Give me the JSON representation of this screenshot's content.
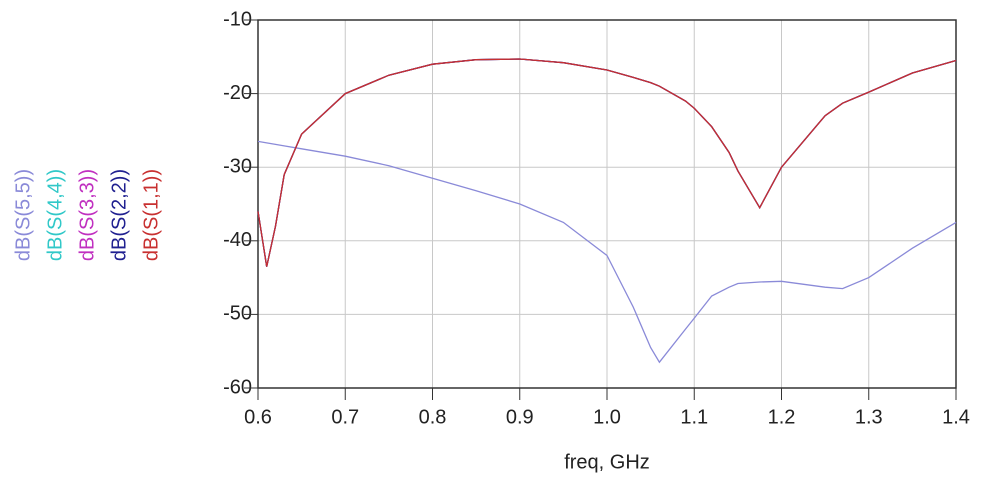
{
  "chart_data": {
    "type": "line",
    "x_label": "freq, GHz",
    "x": [
      0.6,
      0.61,
      0.62,
      0.63,
      0.65,
      0.7,
      0.75,
      0.8,
      0.85,
      0.9,
      0.95,
      1.0,
      1.03,
      1.05,
      1.06,
      1.09,
      1.1,
      1.12,
      1.14,
      1.15,
      1.175,
      1.2,
      1.25,
      1.27,
      1.3,
      1.35,
      1.4
    ],
    "series": [
      {
        "name": "dB(S(5,5))",
        "color": "#8a8ad8",
        "values": [
          -26.5,
          -26.7,
          -26.9,
          -27.1,
          -27.5,
          -28.5,
          -29.8,
          -31.5,
          -33.2,
          -35,
          -37.5,
          -42,
          -49,
          -54.5,
          -56.5,
          -52,
          -50.5,
          -47.5,
          -46.3,
          -45.8,
          -45.6,
          -45.5,
          -46.3,
          -46.5,
          -45,
          -41,
          -37.5
        ]
      },
      {
        "name": "dB(S(4,4))",
        "color": "#30c8c8",
        "values": [
          -36,
          -43.5,
          -38,
          -31,
          -25.5,
          -20,
          -17.5,
          -16,
          -15.4,
          -15.3,
          -15.8,
          -16.8,
          -17.8,
          -18.5,
          -19,
          -21,
          -22,
          -24.5,
          -28,
          -30.5,
          -35.5,
          -30,
          -23,
          -21.3,
          -19.8,
          -17.2,
          -15.5
        ]
      },
      {
        "name": "dB(S(3,3))",
        "color": "#c030c0",
        "values": [
          -36,
          -43.5,
          -38,
          -31,
          -25.5,
          -20,
          -17.5,
          -16,
          -15.4,
          -15.3,
          -15.8,
          -16.8,
          -17.8,
          -18.5,
          -19,
          -21,
          -22,
          -24.5,
          -28,
          -30.5,
          -35.5,
          -30,
          -23,
          -21.3,
          -19.8,
          -17.2,
          -15.5
        ]
      },
      {
        "name": "dB(S(2,2))",
        "color": "#202090",
        "values": [
          -36,
          -43.5,
          -38,
          -31,
          -25.5,
          -20,
          -17.5,
          -16,
          -15.4,
          -15.3,
          -15.8,
          -16.8,
          -17.8,
          -18.5,
          -19,
          -21,
          -22,
          -24.5,
          -28,
          -30.5,
          -35.5,
          -30,
          -23,
          -21.3,
          -19.8,
          -17.2,
          -15.5
        ]
      },
      {
        "name": "dB(S(1,1))",
        "color": "#c83030",
        "values": [
          -36,
          -43.5,
          -38,
          -31,
          -25.5,
          -20,
          -17.5,
          -16,
          -15.4,
          -15.3,
          -15.8,
          -16.8,
          -17.8,
          -18.5,
          -19,
          -21,
          -22,
          -24.5,
          -28,
          -30.5,
          -35.5,
          -30,
          -23,
          -21.3,
          -19.8,
          -17.2,
          -15.5
        ]
      }
    ],
    "xlim": [
      0.6,
      1.4
    ],
    "xticks": [
      0.6,
      0.7,
      0.8,
      0.9,
      {
        "value": 1.0,
        "label": "1.0"
      },
      1.1,
      1.2,
      1.3,
      1.4
    ],
    "ylim": [
      -60,
      -10
    ],
    "yticks": [
      -10,
      -20,
      -30,
      -40,
      -50,
      -60
    ],
    "grid": true
  }
}
